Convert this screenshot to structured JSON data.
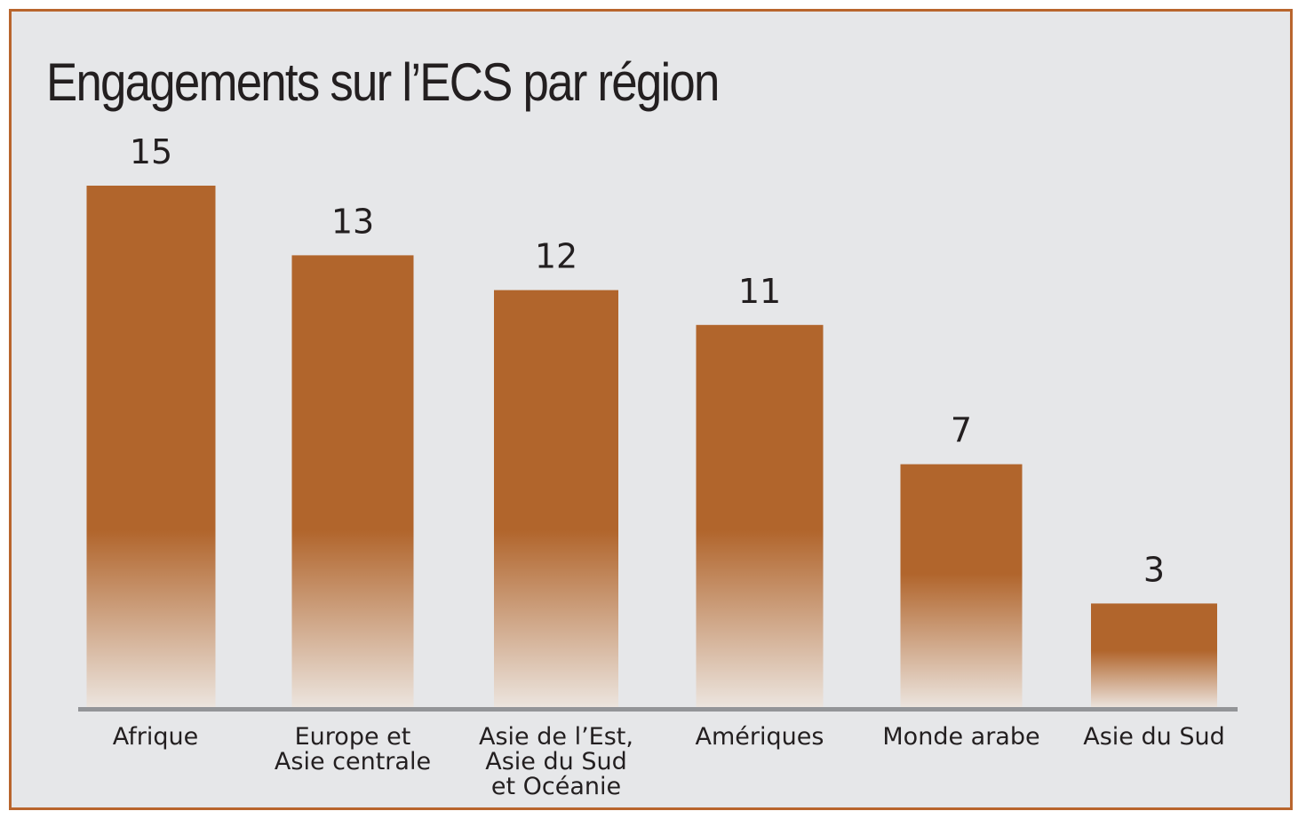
{
  "chart_data": {
    "type": "bar",
    "title": "Engagements sur l’ECS par région",
    "categories": [
      [
        "Afrique"
      ],
      [
        "Europe et",
        "Asie centrale"
      ],
      [
        "Asie de l’Est,",
        "Asie du Sud",
        "et Océanie"
      ],
      [
        "Amériques"
      ],
      [
        "Monde arabe"
      ],
      [
        "Asie du Sud"
      ]
    ],
    "values": [
      15,
      13,
      12,
      11,
      7,
      3
    ],
    "data_labels": true,
    "xlabel": "",
    "ylabel": "",
    "ylim": [
      0,
      15
    ],
    "grid": false,
    "colors": {
      "bar": "#b1652c",
      "bar_fade": "#ece5df",
      "axis": "#939598",
      "background": "#e6e7e9",
      "border": "#b9652d"
    }
  }
}
